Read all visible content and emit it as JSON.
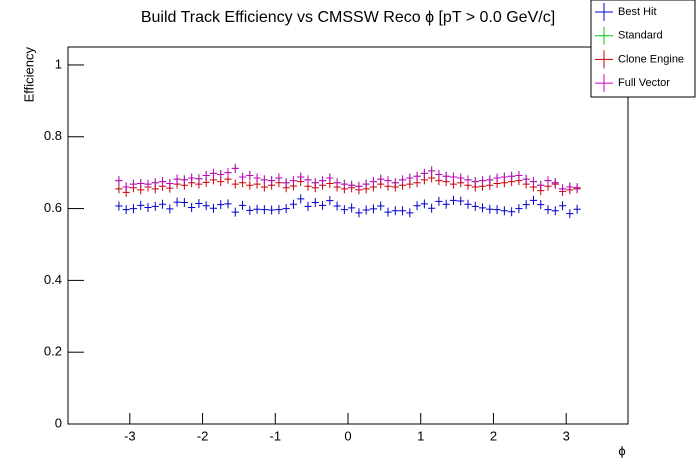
{
  "chart_data": {
    "type": "scatter",
    "title": "Build Track Efficiency vs CMSSW Reco ϕ [pT > 0.0 GeV/c]",
    "x_label": "ϕ",
    "y_label": "Efficiency",
    "x": [
      -3.15,
      -3.05,
      -2.95,
      -2.85,
      -2.75,
      -2.65,
      -2.55,
      -2.45,
      -2.35,
      -2.25,
      -2.15,
      -2.05,
      -1.95,
      -1.85,
      -1.75,
      -1.65,
      -1.55,
      -1.45,
      -1.35,
      -1.25,
      -1.15,
      -1.05,
      -0.95,
      -0.85,
      -0.75,
      -0.65,
      -0.55,
      -0.45,
      -0.35,
      -0.25,
      -0.15,
      -0.05,
      0.05,
      0.15,
      0.25,
      0.35,
      0.45,
      0.55,
      0.65,
      0.75,
      0.85,
      0.95,
      1.05,
      1.15,
      1.25,
      1.35,
      1.45,
      1.55,
      1.65,
      1.75,
      1.85,
      1.95,
      2.05,
      2.15,
      2.25,
      2.35,
      2.45,
      2.55,
      2.65,
      2.75,
      2.85,
      2.95,
      3.05,
      3.15
    ],
    "series": [
      {
        "name": "Best Hit",
        "color": "#0000cc",
        "values": [
          0.607,
          0.597,
          0.6,
          0.609,
          0.603,
          0.606,
          0.612,
          0.599,
          0.618,
          0.617,
          0.603,
          0.614,
          0.608,
          0.601,
          0.611,
          0.613,
          0.59,
          0.609,
          0.595,
          0.598,
          0.597,
          0.596,
          0.597,
          0.6,
          0.612,
          0.627,
          0.606,
          0.617,
          0.609,
          0.622,
          0.607,
          0.597,
          0.602,
          0.588,
          0.596,
          0.599,
          0.607,
          0.59,
          0.594,
          0.594,
          0.588,
          0.608,
          0.613,
          0.601,
          0.62,
          0.612,
          0.623,
          0.621,
          0.612,
          0.606,
          0.602,
          0.598,
          0.597,
          0.594,
          0.591,
          0.6,
          0.611,
          0.623,
          0.611,
          0.597,
          0.594,
          0.608,
          0.586,
          0.598
        ]
      },
      {
        "name": "Standard",
        "color": "#00cc00",
        "values": [
          0.678,
          0.66,
          0.668,
          0.67,
          0.668,
          0.672,
          0.675,
          0.67,
          0.682,
          0.68,
          0.685,
          0.683,
          0.692,
          0.698,
          0.695,
          0.7,
          0.712,
          0.688,
          0.692,
          0.685,
          0.68,
          0.678,
          0.685,
          0.672,
          0.678,
          0.688,
          0.68,
          0.672,
          0.678,
          0.685,
          0.672,
          0.668,
          0.665,
          0.662,
          0.668,
          0.675,
          0.682,
          0.678,
          0.672,
          0.68,
          0.685,
          0.69,
          0.698,
          0.705,
          0.695,
          0.69,
          0.688,
          0.685,
          0.68,
          0.675,
          0.678,
          0.68,
          0.685,
          0.688,
          0.69,
          0.692,
          0.682,
          0.675,
          0.665,
          0.678,
          0.672,
          0.655,
          0.66,
          0.658
        ]
      },
      {
        "name": "Clone Engine",
        "color": "#cc0000",
        "values": [
          0.655,
          0.645,
          0.658,
          0.652,
          0.66,
          0.655,
          0.662,
          0.657,
          0.668,
          0.665,
          0.672,
          0.668,
          0.673,
          0.68,
          0.675,
          0.682,
          0.668,
          0.672,
          0.665,
          0.668,
          0.66,
          0.665,
          0.672,
          0.658,
          0.663,
          0.675,
          0.662,
          0.658,
          0.665,
          0.67,
          0.66,
          0.655,
          0.658,
          0.652,
          0.655,
          0.66,
          0.668,
          0.662,
          0.66,
          0.665,
          0.668,
          0.672,
          0.68,
          0.685,
          0.678,
          0.675,
          0.668,
          0.672,
          0.665,
          0.66,
          0.662,
          0.665,
          0.67,
          0.672,
          0.675,
          0.678,
          0.668,
          0.66,
          0.65,
          0.662,
          0.668,
          0.648,
          0.652,
          0.655
        ]
      },
      {
        "name": "Full Vector",
        "color": "#cc00cc",
        "values": [
          0.678,
          0.66,
          0.668,
          0.67,
          0.668,
          0.672,
          0.675,
          0.67,
          0.682,
          0.68,
          0.685,
          0.683,
          0.692,
          0.698,
          0.695,
          0.7,
          0.712,
          0.688,
          0.692,
          0.685,
          0.68,
          0.678,
          0.685,
          0.672,
          0.678,
          0.688,
          0.68,
          0.672,
          0.678,
          0.685,
          0.672,
          0.668,
          0.665,
          0.662,
          0.668,
          0.675,
          0.682,
          0.678,
          0.672,
          0.68,
          0.685,
          0.69,
          0.698,
          0.705,
          0.695,
          0.69,
          0.688,
          0.685,
          0.68,
          0.675,
          0.678,
          0.68,
          0.685,
          0.688,
          0.69,
          0.692,
          0.682,
          0.675,
          0.665,
          0.678,
          0.672,
          0.655,
          0.66,
          0.658
        ]
      }
    ],
    "xlim": [
      -3.85,
      3.85
    ],
    "xticks": [
      -3,
      -2,
      -1,
      0,
      1,
      2,
      3
    ],
    "ylim": [
      0,
      1.05
    ],
    "yticks": [
      0,
      0.2,
      0.4,
      0.6,
      0.8,
      1
    ],
    "grid": false,
    "legend": "top-right"
  }
}
